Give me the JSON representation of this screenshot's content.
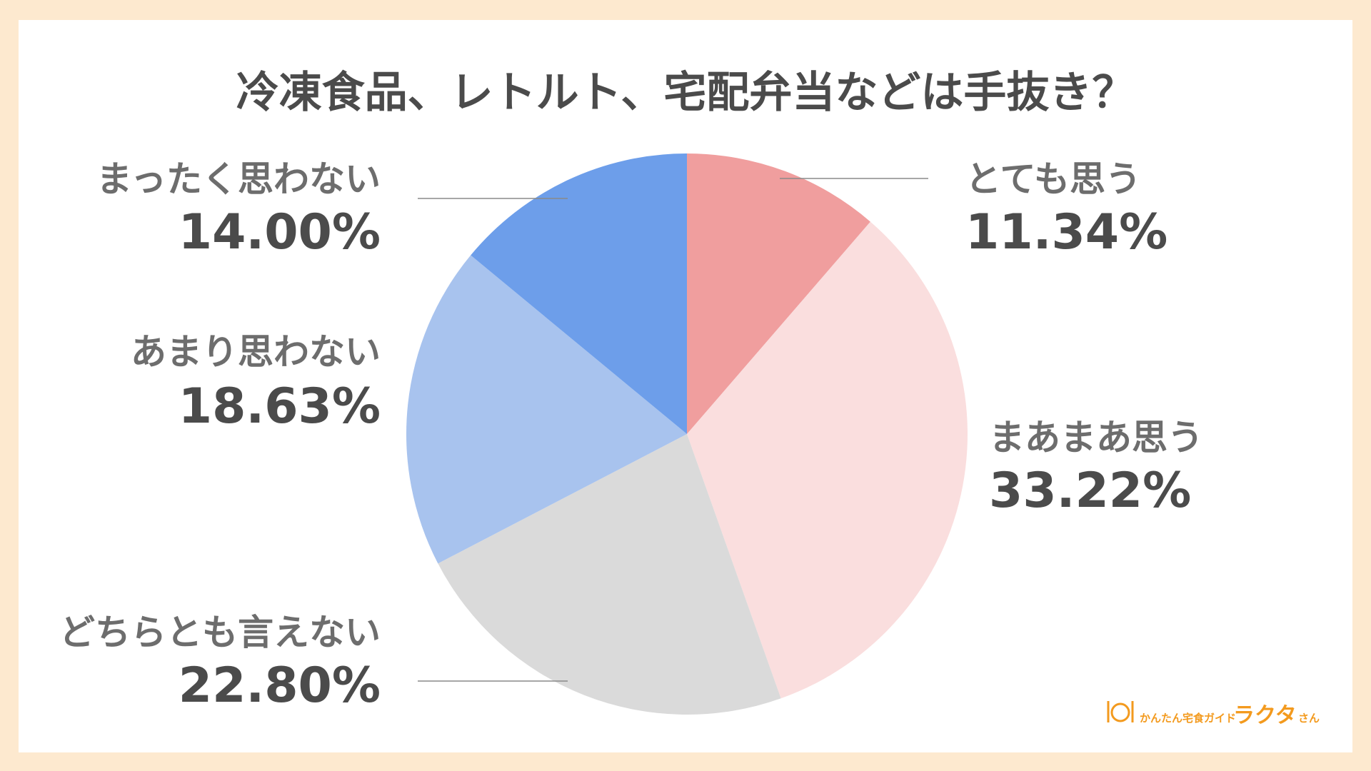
{
  "chart_data": {
    "type": "pie",
    "title": "冷凍食品、レトルト、宅配弁当などは手抜き？",
    "start_angle": "12 o'clock",
    "direction": "clockwise",
    "slices": [
      {
        "label": "とても思う",
        "value": 11.34,
        "value_text": "11.34%",
        "color": "#f09e9e"
      },
      {
        "label": "まあまあ思う",
        "value": 33.22,
        "value_text": "33.22%",
        "color": "#fadede"
      },
      {
        "label": "どちらとも言えない",
        "value": 22.8,
        "value_text": "22.80%",
        "color": "#dadada"
      },
      {
        "label": "あまり思わない",
        "value": 18.63,
        "value_text": "18.63%",
        "color": "#a8c3ee"
      },
      {
        "label": "まったく思わない",
        "value": 14.0,
        "value_text": "14.00%",
        "color": "#6d9eea"
      }
    ]
  },
  "logo": {
    "tagline": "かんたん宅食ガイド",
    "name": "ラクタ",
    "suffix": "さん",
    "color": "#f39a1e",
    "icon": "plate-cutlery-icon"
  }
}
